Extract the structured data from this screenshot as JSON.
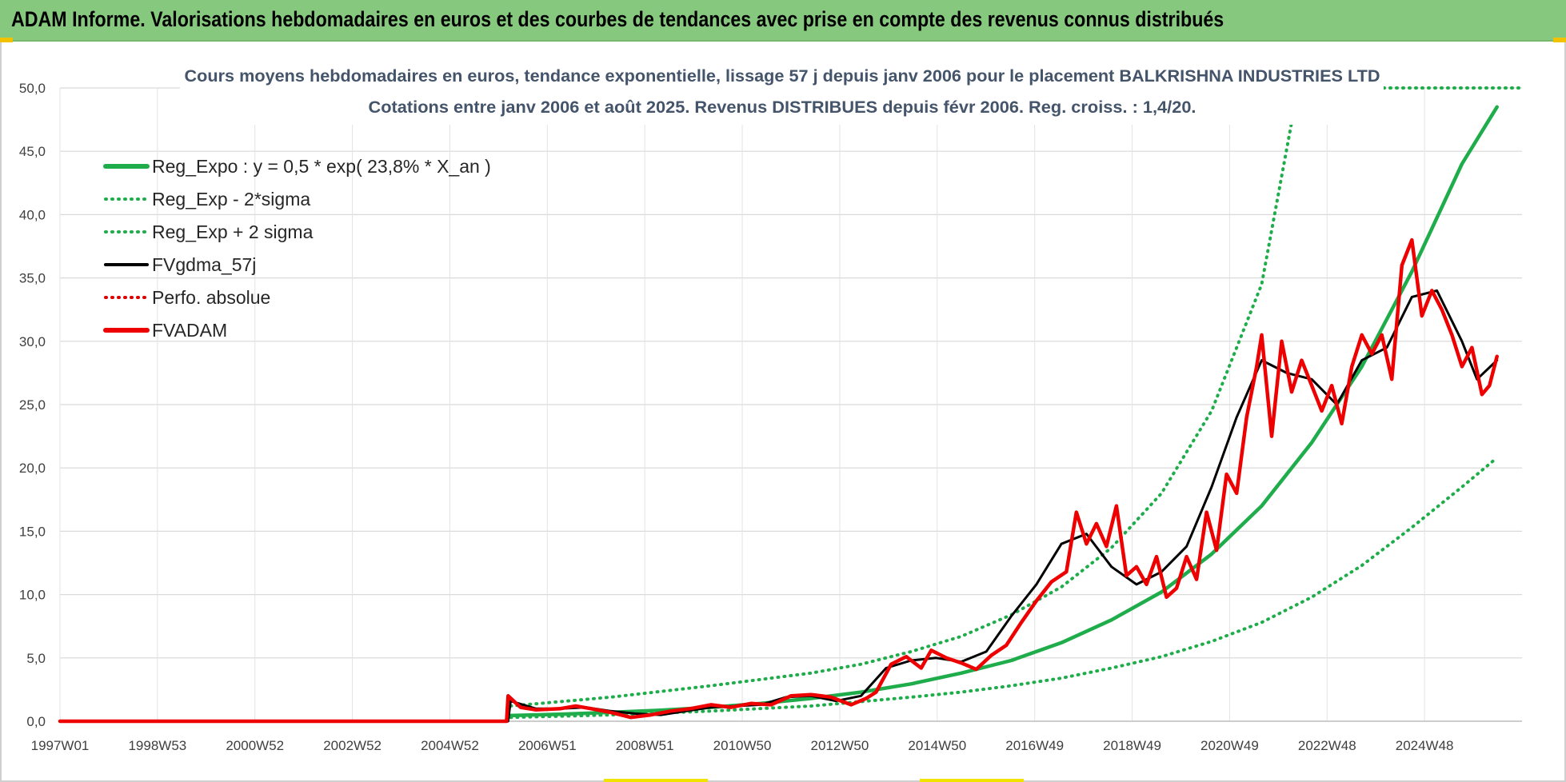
{
  "header": {
    "title": "ADAM Informe. Valorisations hebdomadaires en euros et des courbes de tendances avec prise en compte des revenus connus distribués"
  },
  "chart_data": {
    "type": "line",
    "title": "Cours moyens hebdomadaires en euros, tendance exponentielle, lissage 57 j depuis janv 2006 pour le placement BALKRISHNA INDUSTRIES LTD",
    "subtitle": "Cotations entre janv 2006 et août 2025. Revenus DISTRIBUES depuis févr 2006. Reg. croiss. : 1,4/20.",
    "xlabel": "",
    "ylabel": "",
    "x_ticks": [
      "1997W01",
      "1998W53",
      "2000W52",
      "2002W52",
      "2004W52",
      "2006W51",
      "2008W51",
      "2010W50",
      "2012W50",
      "2014W50",
      "2016W49",
      "2018W49",
      "2020W49",
      "2022W48",
      "2024W48"
    ],
    "xlim": [
      1997.0,
      2026.2
    ],
    "y_ticks": [
      "0,0",
      "5,0",
      "10,0",
      "15,0",
      "20,0",
      "25,0",
      "30,0",
      "35,0",
      "40,0",
      "45,0",
      "50,0"
    ],
    "ylim": [
      0,
      50
    ],
    "grid": true,
    "legend_position": "top-left",
    "series": [
      {
        "name": "Reg_Expo : y = 0,5 * exp( 23,8% *  X_an )",
        "style": "solid",
        "color": "#1fad4b",
        "x": [
          2006.0,
          2007.0,
          2008.0,
          2009.0,
          2010.0,
          2011.0,
          2012.0,
          2013.0,
          2014.0,
          2015.0,
          2016.0,
          2017.0,
          2018.0,
          2019.0,
          2020.0,
          2021.0,
          2022.0,
          2023.0,
          2024.0,
          2025.0,
          2025.7
        ],
        "values": [
          0.45,
          0.55,
          0.7,
          0.87,
          1.1,
          1.4,
          1.8,
          2.3,
          2.95,
          3.8,
          4.8,
          6.2,
          8.0,
          10.2,
          13.2,
          17.0,
          22.0,
          28.0,
          35.5,
          44.0,
          48.5
        ]
      },
      {
        "name": "Reg_Exp - 2*sigma",
        "style": "dotted",
        "color": "#1fad4b",
        "x": [
          2006.0,
          2008.0,
          2010.0,
          2012.0,
          2014.0,
          2015.0,
          2016.0,
          2017.0,
          2018.0,
          2019.0,
          2020.0,
          2021.0,
          2022.0,
          2023.0,
          2024.0,
          2025.0,
          2025.7
        ],
        "values": [
          0.3,
          0.5,
          0.8,
          1.2,
          1.9,
          2.3,
          2.8,
          3.4,
          4.2,
          5.1,
          6.3,
          7.8,
          9.8,
          12.3,
          15.3,
          18.5,
          20.8
        ]
      },
      {
        "name": "Reg_Exp + 2 sigma",
        "style": "dotted",
        "color": "#1fad4b",
        "x": [
          2006.0,
          2008.0,
          2010.0,
          2012.0,
          2013.0,
          2014.0,
          2015.0,
          2016.0,
          2017.0,
          2018.0,
          2019.0,
          2020.0,
          2021.0,
          2021.6
        ],
        "values": [
          1.2,
          1.9,
          2.8,
          3.8,
          4.5,
          5.5,
          6.7,
          8.4,
          10.6,
          13.7,
          18.0,
          24.5,
          34.5,
          47.3
        ]
      },
      {
        "name": "FVgdma_57j",
        "style": "solid",
        "color": "#000000",
        "x": [
          1997.0,
          2005.95,
          2006.0,
          2006.5,
          2007.0,
          2007.5,
          2008.0,
          2008.5,
          2009.0,
          2009.5,
          2010.0,
          2010.5,
          2011.0,
          2011.5,
          2012.0,
          2012.5,
          2013.0,
          2013.5,
          2014.0,
          2014.5,
          2015.0,
          2015.5,
          2016.0,
          2016.5,
          2017.0,
          2017.5,
          2018.0,
          2018.5,
          2019.0,
          2019.5,
          2020.0,
          2020.5,
          2021.0,
          2021.5,
          2022.0,
          2022.5,
          2023.0,
          2023.5,
          2024.0,
          2024.5,
          2025.0,
          2025.3,
          2025.7
        ],
        "values": [
          0,
          0,
          1.6,
          1.0,
          1.0,
          1.1,
          0.8,
          0.6,
          0.5,
          0.8,
          1.1,
          1.2,
          1.3,
          1.9,
          2.0,
          1.6,
          2.0,
          4.2,
          4.8,
          5.0,
          4.7,
          5.5,
          8.3,
          10.8,
          14.0,
          14.8,
          12.2,
          10.8,
          11.8,
          13.8,
          18.5,
          24.0,
          28.5,
          27.5,
          27.0,
          25.0,
          28.5,
          29.5,
          33.5,
          34.0,
          30.0,
          27.0,
          28.5
        ]
      },
      {
        "name": "Perfo. absolue",
        "style": "dotted",
        "color": "#e00000",
        "x": [],
        "values": []
      },
      {
        "name": "FVADAM",
        "style": "solid",
        "color": "#ee0000",
        "x": [
          1997.0,
          2005.92,
          2005.95,
          2006.2,
          2006.5,
          2007.0,
          2007.3,
          2007.6,
          2008.0,
          2008.4,
          2008.8,
          2009.2,
          2009.6,
          2010.0,
          2010.4,
          2010.8,
          2011.2,
          2011.6,
          2012.0,
          2012.4,
          2012.8,
          2013.1,
          2013.3,
          2013.6,
          2013.9,
          2014.2,
          2014.4,
          2014.7,
          2015.0,
          2015.3,
          2015.6,
          2015.9,
          2016.2,
          2016.5,
          2016.8,
          2017.1,
          2017.3,
          2017.5,
          2017.7,
          2017.9,
          2018.1,
          2018.3,
          2018.5,
          2018.7,
          2018.9,
          2019.1,
          2019.3,
          2019.5,
          2019.7,
          2019.9,
          2020.1,
          2020.3,
          2020.5,
          2020.7,
          2020.9,
          2021.0,
          2021.2,
          2021.4,
          2021.6,
          2021.8,
          2022.0,
          2022.2,
          2022.4,
          2022.6,
          2022.8,
          2023.0,
          2023.2,
          2023.4,
          2023.6,
          2023.8,
          2024.0,
          2024.2,
          2024.4,
          2024.6,
          2024.8,
          2025.0,
          2025.2,
          2025.4,
          2025.55,
          2025.7
        ],
        "values": [
          0,
          0,
          2.0,
          1.1,
          0.9,
          1.0,
          1.2,
          1.0,
          0.7,
          0.3,
          0.5,
          0.8,
          1.0,
          1.3,
          1.1,
          1.4,
          1.3,
          2.0,
          2.1,
          1.9,
          1.3,
          1.8,
          2.3,
          4.5,
          5.1,
          4.2,
          5.6,
          5.0,
          4.6,
          4.1,
          5.2,
          6.0,
          7.8,
          9.5,
          11.0,
          11.8,
          16.5,
          14.0,
          15.6,
          13.8,
          17.0,
          11.5,
          12.2,
          10.8,
          13.0,
          9.8,
          10.5,
          13.0,
          11.2,
          16.5,
          13.5,
          19.5,
          18.0,
          24.0,
          28.0,
          30.5,
          22.5,
          30.0,
          26.0,
          28.5,
          26.5,
          24.5,
          26.5,
          23.5,
          28.0,
          30.5,
          29.0,
          30.5,
          27.0,
          36.0,
          38.0,
          32.0,
          34.0,
          32.5,
          30.5,
          28.0,
          29.5,
          25.8,
          26.5,
          28.8
        ]
      }
    ]
  }
}
